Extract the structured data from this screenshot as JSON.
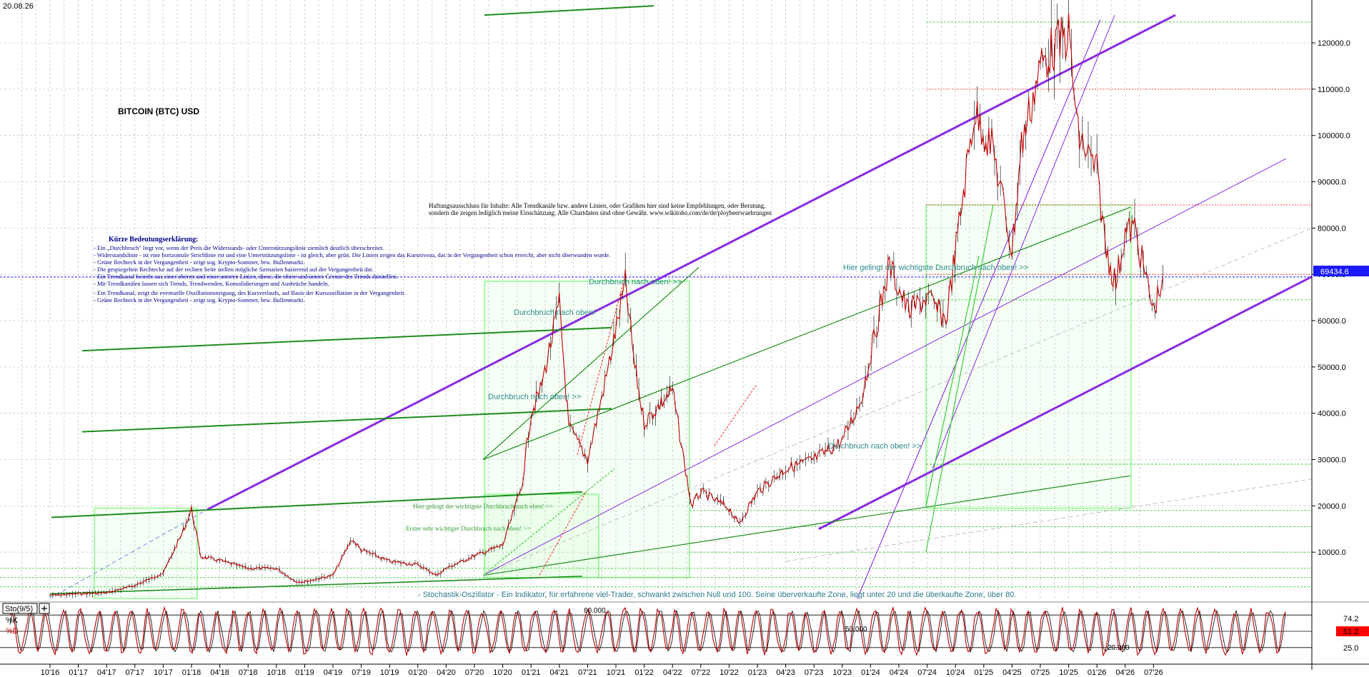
{
  "chart_data": [
    {
      "type": "line",
      "title": "BITCOIN (BTC) USD",
      "date_label": "20.08.26",
      "current_price_label": "69434.6",
      "y_scale": "linear",
      "ylim": [
        0,
        128000
      ],
      "y_ticks": [
        10000,
        20000,
        30000,
        40000,
        50000,
        60000,
        70000,
        80000,
        90000,
        100000,
        110000,
        120000
      ],
      "y_tick_labels": [
        "10000.0",
        "20000.0",
        "30000.0",
        "40000.0",
        "50000.0",
        "60000.0",
        "70000.0",
        "80000.0",
        "90000.0",
        "100000.0",
        "110000.0",
        "120000.0"
      ],
      "x_tick_labels": [
        "10'16",
        "01'17",
        "04'17",
        "07'17",
        "10'17",
        "01'18",
        "04'18",
        "07'18",
        "10'18",
        "01'19",
        "04'19",
        "07'19",
        "10'19",
        "01'20",
        "04'20",
        "07'20",
        "10'20",
        "01'21",
        "04'21",
        "07'21",
        "10'21",
        "01'22",
        "04'22",
        "07'22",
        "10'22",
        "01'23",
        "04'23",
        "07'23",
        "10'23",
        "01'24",
        "04'24",
        "07'24",
        "10'24",
        "01'25",
        "04'25",
        "07'25",
        "10'25",
        "01'26",
        "04'26",
        "07'26"
      ],
      "grid": true,
      "series": [
        {
          "name": "BTC/USD",
          "color": "#c00000",
          "x": [
            "10'16",
            "01'17",
            "04'17",
            "07'17",
            "10'17",
            "12'17",
            "01'18",
            "02'18",
            "04'18",
            "07'18",
            "10'18",
            "12'18",
            "01'19",
            "04'19",
            "06'19",
            "07'19",
            "10'19",
            "01'20",
            "03'20",
            "04'20",
            "07'20",
            "10'20",
            "12'20",
            "01'21",
            "02'21",
            "04'21",
            "05'21",
            "07'21",
            "09'21",
            "11'21",
            "12'21",
            "01'22",
            "04'22",
            "06'22",
            "07'22",
            "10'22",
            "11'22",
            "01'23",
            "04'23",
            "07'23",
            "10'23",
            "12'23",
            "03'24",
            "05'24",
            "07'24",
            "09'24",
            "11'24",
            "12'24",
            "02'25",
            "04'25",
            "05'25",
            "07'25",
            "08'25",
            "10'25",
            "11'25",
            "01'26",
            "02'26",
            "03'26",
            "04'26",
            "05'26",
            "07'26",
            "08'26"
          ],
          "values": [
            640,
            1000,
            1200,
            2800,
            5500,
            14000,
            19200,
            9000,
            8200,
            6500,
            6500,
            3700,
            3600,
            5000,
            12800,
            10500,
            8000,
            7300,
            5000,
            6500,
            9200,
            11500,
            24000,
            40000,
            45000,
            63500,
            37000,
            30000,
            48000,
            68000,
            50000,
            38000,
            45000,
            20000,
            23000,
            19500,
            16000,
            23000,
            28000,
            30000,
            34000,
            43000,
            72000,
            62000,
            65000,
            60000,
            90000,
            105000,
            97000,
            75000,
            98000,
            115000,
            118000,
            122000,
            100000,
            92000,
            75000,
            68000,
            79000,
            80000,
            62000,
            69434.6
          ]
        }
      ],
      "annotations": {
        "disclaimer_lines": [
          "Haftungsausschluss für Inhalte: Alle Trendkanäle bzw. andere Linien, oder Grafiken hier sind keine Empfehlungen, oder Beratung,",
          "sondern die zeigen lediglich meine  Einschätzung. Alle Chartdaten sind ohne Gewähr.  www.wikitoho.com/de/de/ploybeerwaehrungen"
        ],
        "legend_title": "Kürze Bedeutungserklärung:",
        "legend_lines": [
          "- Ein „Durchbruch\" liegt vor, wenn der Preis die Widerstands- oder Unterstützungslinie ziemlich deutlich überschreitet.",
          "- Widerstandslinie - ist eine horizontale Strichlinie rot und eine Unterstützungslinie - ist gleich, aber grün. Die Linien zeigen das Kursniveau, das in der Vergangenheit schon erreicht, aber nicht überwunden wurde.",
          "- Grüne Rechteck in der Vergangenheit - zeigt sog. Krypto-Sommer, brw. Bullenmarkt.",
          "- Die gespiegelten Rechtecke auf der rechten Seite stellen mögliche Szenarien basierend auf der Vergangenheit dar.",
          "- Ein Trendkanal besteht aus einer oberen und einer unteren Linien, diese, die obere und untere Grenze des Trends darstellen.",
          "- Mit Trendkanälen lassen sich Trends, Trendwenden, Konsolidierungen und Ausbrüche handeln.",
          "- Ein Trendkanal, zeigt die eventuelle Oszillationsneigung, des Kursverlaufs, auf Basis der Kursoszillation in der Vergangenheit.",
          "- Grüne Rechteck in der Vergangenheit - zeigt sog. Krypto-Sommer, brw. Bullenmarkt."
        ],
        "breakout_label": "Durchbruch nach oben! >>",
        "breakout_label_2": "Durchbruch nach oben!",
        "key_breakout_label": "Hier gelingt der wichtigste Durchbruch nach oben! >>",
        "first_breakout_label": "Erster sehr wichtiger Durchbruch nach oben! >>",
        "stochastic_note": "- Stochastik-Oszillator - Ein Indikator, für erfahrene viel-Trader, schwankt zwischen Null und 100. Seine überverkaufte Zone, liegt unter 20 und die überkaufte Zone, über 80."
      }
    },
    {
      "type": "line",
      "title": "Sto(9/5)",
      "ylim": [
        0,
        100
      ],
      "levels": [
        20,
        50,
        80
      ],
      "level_labels": [
        "20.000",
        "50.000",
        "80.000"
      ],
      "tick_label": "25.0",
      "series": [
        {
          "name": "%K",
          "color": "#c00000",
          "last_value_label": "74.2"
        },
        {
          "name": "%D",
          "color": "#1a1a1a",
          "last_value_label": "51.2"
        }
      ]
    }
  ],
  "colors": {
    "price": "#c00000",
    "channel_purple": "#8a2be2",
    "trend_green": "#1e8c1e",
    "bull_box": "#7cfc7c",
    "resistance": "#ff2020",
    "support": "#3ccc3c",
    "current_price_bg": "#1a1aff"
  }
}
